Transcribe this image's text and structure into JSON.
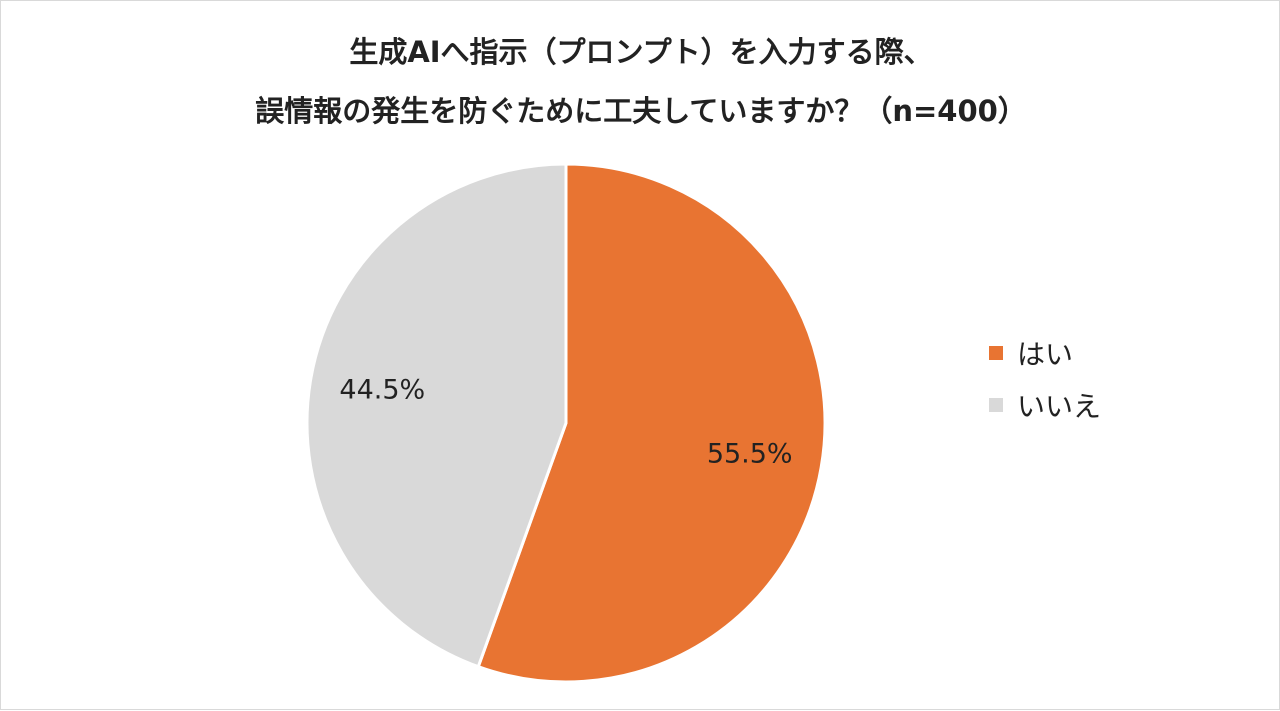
{
  "chart_data": {
    "type": "pie",
    "title": "生成AIへ指示（プロンプト）を入力する際、",
    "subtitle": "誤情報の発生を防ぐために工夫していますか？（n=400）",
    "categories": [
      "はい",
      "いいえ"
    ],
    "values": [
      55.5,
      44.5
    ],
    "value_labels": [
      "55.5%",
      "44.5%"
    ],
    "colors": [
      "#E87432",
      "#D9D9D9"
    ],
    "start_angle": "12 o'clock",
    "direction": "clockwise",
    "legend_position": "right"
  }
}
